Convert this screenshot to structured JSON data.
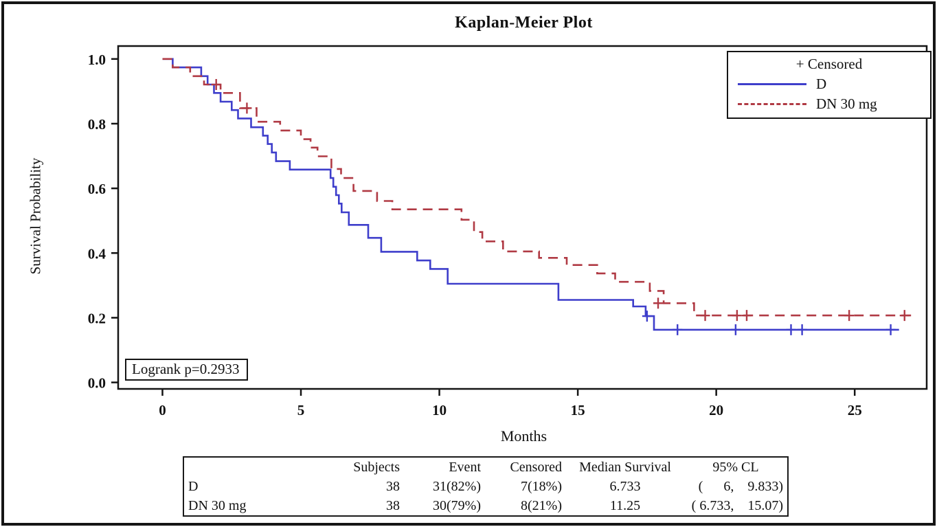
{
  "chart_data": {
    "type": "line",
    "subtype": "kaplan-meier-step",
    "title": "Kaplan-Meier Plot",
    "xlabel": "Months",
    "ylabel": "Survival Probability",
    "xlim": [
      -1.6,
      27.6
    ],
    "ylim": [
      -0.02,
      1.04
    ],
    "xticks": [
      0,
      5,
      10,
      15,
      20,
      25
    ],
    "yticks": [
      0.0,
      0.2,
      0.4,
      0.6,
      0.8,
      1.0
    ],
    "grid": false,
    "legend_position": "top-right",
    "annotation": "Logrank p=0.2933",
    "censored_legend_label": "+ Censored",
    "axis_color": "#151515",
    "series": [
      {
        "name": "D",
        "color": "#3e3ecb",
        "style": "solid",
        "steps": [
          [
            0,
            1.0
          ],
          [
            0.37,
            0.974
          ],
          [
            1.4,
            0.947
          ],
          [
            1.63,
            0.921
          ],
          [
            1.86,
            0.895
          ],
          [
            2.1,
            0.868
          ],
          [
            2.5,
            0.842
          ],
          [
            2.73,
            0.816
          ],
          [
            3.2,
            0.789
          ],
          [
            3.63,
            0.763
          ],
          [
            3.8,
            0.737
          ],
          [
            3.95,
            0.711
          ],
          [
            4.1,
            0.684
          ],
          [
            4.6,
            0.658
          ],
          [
            6.07,
            0.632
          ],
          [
            6.17,
            0.605
          ],
          [
            6.27,
            0.579
          ],
          [
            6.37,
            0.553
          ],
          [
            6.47,
            0.526
          ],
          [
            6.73,
            0.487
          ],
          [
            7.43,
            0.447
          ],
          [
            7.9,
            0.404
          ],
          [
            9.2,
            0.377
          ],
          [
            9.67,
            0.351
          ],
          [
            10.3,
            0.305
          ],
          [
            14.3,
            0.255
          ],
          [
            17.0,
            0.235
          ],
          [
            17.45,
            0.205
          ],
          [
            17.75,
            0.163
          ],
          [
            26.6,
            0.163
          ]
        ],
        "censored": [
          [
            17.5,
            0.205
          ],
          [
            18.6,
            0.163
          ],
          [
            20.7,
            0.163
          ],
          [
            22.7,
            0.163
          ],
          [
            23.1,
            0.163
          ],
          [
            26.3,
            0.163
          ]
        ]
      },
      {
        "name": "DN 30 mg",
        "color": "#b03a44",
        "style": "dashed",
        "steps": [
          [
            0,
            1.0
          ],
          [
            0.37,
            0.974
          ],
          [
            1.0,
            0.947
          ],
          [
            1.5,
            0.921
          ],
          [
            2.1,
            0.895
          ],
          [
            2.8,
            0.848
          ],
          [
            3.4,
            0.806
          ],
          [
            4.25,
            0.779
          ],
          [
            5.0,
            0.752
          ],
          [
            5.35,
            0.726
          ],
          [
            5.6,
            0.699
          ],
          [
            6.1,
            0.66
          ],
          [
            6.45,
            0.632
          ],
          [
            6.9,
            0.592
          ],
          [
            7.75,
            0.561
          ],
          [
            8.3,
            0.535
          ],
          [
            10.8,
            0.503
          ],
          [
            11.25,
            0.465
          ],
          [
            11.55,
            0.436
          ],
          [
            12.3,
            0.405
          ],
          [
            13.6,
            0.385
          ],
          [
            14.6,
            0.363
          ],
          [
            15.7,
            0.337
          ],
          [
            16.35,
            0.311
          ],
          [
            17.6,
            0.283
          ],
          [
            18.1,
            0.245
          ],
          [
            19.2,
            0.207
          ],
          [
            27.2,
            0.207
          ]
        ],
        "censored": [
          [
            1.94,
            0.921
          ],
          [
            3.05,
            0.848
          ],
          [
            17.9,
            0.245
          ],
          [
            19.6,
            0.207
          ],
          [
            20.75,
            0.207
          ],
          [
            21.1,
            0.207
          ],
          [
            24.8,
            0.207
          ],
          [
            26.8,
            0.207
          ]
        ]
      }
    ]
  },
  "summary_table": {
    "headers": [
      "",
      "Subjects",
      "Event",
      "Censored",
      "Median Survival",
      "95% CL"
    ],
    "rows": [
      [
        "D",
        "38",
        "31(82%)",
        "7(18%)",
        "6.733",
        "(      6,    9.833)"
      ],
      [
        "DN 30 mg",
        "38",
        "30(79%)",
        "8(21%)",
        "11.25",
        "( 6.733,    15.07)"
      ]
    ]
  }
}
